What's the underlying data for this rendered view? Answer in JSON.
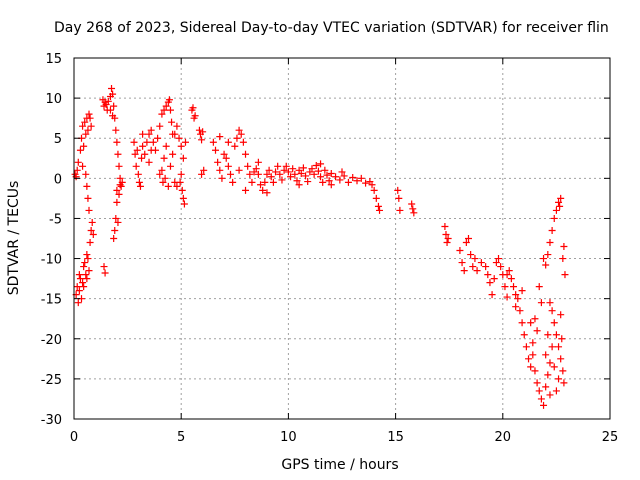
{
  "chart_data": {
    "type": "scatter",
    "title": "Day 268 of 2023, Sidereal Day-to-day VTEC variation (SDTVAR) for receiver flin",
    "xlabel": "GPS time / hours",
    "ylabel": "SDTVAR / TECUs",
    "xlim": [
      0,
      25
    ],
    "ylim": [
      -30,
      15
    ],
    "xticks": [
      0,
      5,
      10,
      15,
      20,
      25
    ],
    "yticks": [
      15,
      10,
      5,
      0,
      -5,
      -10,
      -15,
      -20,
      -25,
      -30
    ],
    "grid": true,
    "marker": "+",
    "color": "#ff0000",
    "series": [
      {
        "name": "SDTVAR",
        "points": [
          [
            0.05,
            0.5
          ],
          [
            0.1,
            0.2
          ],
          [
            0.15,
            1.0
          ],
          [
            0.2,
            -15.5
          ],
          [
            0.25,
            -14.0
          ],
          [
            0.3,
            -12.5
          ],
          [
            0.35,
            -15.0
          ],
          [
            0.4,
            -13.0
          ],
          [
            0.45,
            -11.0
          ],
          [
            0.5,
            -10.5
          ],
          [
            0.55,
            -12.0
          ],
          [
            0.6,
            -9.5
          ],
          [
            0.65,
            -10.0
          ],
          [
            0.7,
            -11.5
          ],
          [
            0.75,
            -8.0
          ],
          [
            0.8,
            -6.5
          ],
          [
            0.85,
            -5.5
          ],
          [
            0.9,
            -7.0
          ],
          [
            0.2,
            2.0
          ],
          [
            0.3,
            3.5
          ],
          [
            0.35,
            5.0
          ],
          [
            0.4,
            6.5
          ],
          [
            0.45,
            4.0
          ],
          [
            0.5,
            7.0
          ],
          [
            0.55,
            5.5
          ],
          [
            0.6,
            7.5
          ],
          [
            0.65,
            6.0
          ],
          [
            0.7,
            8.0
          ],
          [
            0.75,
            7.5
          ],
          [
            0.8,
            6.5
          ],
          [
            0.55,
            0.5
          ],
          [
            0.6,
            -1.0
          ],
          [
            0.65,
            -2.5
          ],
          [
            0.7,
            -4.0
          ],
          [
            0.15,
            -13.5
          ],
          [
            0.25,
            -12.0
          ],
          [
            0.1,
            -14.5
          ],
          [
            0.45,
            -13.5
          ],
          [
            0.6,
            -12.5
          ],
          [
            0.4,
            1.5
          ],
          [
            1.35,
            9.8
          ],
          [
            1.4,
            9.0
          ],
          [
            1.45,
            9.5
          ],
          [
            1.5,
            9.2
          ],
          [
            1.55,
            8.5
          ],
          [
            1.6,
            9.6
          ],
          [
            1.7,
            10.2
          ],
          [
            1.75,
            11.2
          ],
          [
            1.8,
            10.5
          ],
          [
            1.85,
            9.0
          ],
          [
            1.9,
            7.5
          ],
          [
            1.95,
            6.0
          ],
          [
            2.0,
            4.5
          ],
          [
            2.05,
            3.0
          ],
          [
            2.1,
            1.5
          ],
          [
            2.15,
            0.0
          ],
          [
            2.2,
            -1.0
          ],
          [
            2.25,
            -0.5
          ],
          [
            2.0,
            -3.0
          ],
          [
            1.95,
            -5.0
          ],
          [
            1.9,
            -6.5
          ],
          [
            1.85,
            -7.5
          ],
          [
            2.05,
            -5.5
          ],
          [
            2.1,
            -2.0
          ],
          [
            1.4,
            -11.0
          ],
          [
            1.45,
            -11.8
          ],
          [
            1.8,
            7.8
          ],
          [
            2.0,
            -1.5
          ],
          [
            2.15,
            -0.8
          ],
          [
            1.7,
            8.5
          ],
          [
            2.8,
            4.5
          ],
          [
            2.85,
            3.0
          ],
          [
            2.9,
            1.5
          ],
          [
            2.95,
            3.5
          ],
          [
            3.0,
            0.5
          ],
          [
            3.05,
            -0.5
          ],
          [
            3.1,
            -1.0
          ],
          [
            3.15,
            2.5
          ],
          [
            3.2,
            4.0
          ],
          [
            3.3,
            3.0
          ],
          [
            3.4,
            4.5
          ],
          [
            3.5,
            5.5
          ],
          [
            3.6,
            6.0
          ],
          [
            3.7,
            4.5
          ],
          [
            3.8,
            3.5
          ],
          [
            3.9,
            5.0
          ],
          [
            4.0,
            6.5
          ],
          [
            4.1,
            8.0
          ],
          [
            4.2,
            8.5
          ],
          [
            4.3,
            9.0
          ],
          [
            4.4,
            9.5
          ],
          [
            4.45,
            9.8
          ],
          [
            4.5,
            8.5
          ],
          [
            4.55,
            7.0
          ],
          [
            4.6,
            5.5
          ],
          [
            4.3,
            4.0
          ],
          [
            4.2,
            2.5
          ],
          [
            4.1,
            1.0
          ],
          [
            4.0,
            0.5
          ],
          [
            4.15,
            -0.5
          ],
          [
            4.25,
            0.0
          ],
          [
            4.4,
            -1.0
          ],
          [
            4.5,
            1.5
          ],
          [
            4.6,
            3.0
          ],
          [
            4.7,
            5.5
          ],
          [
            4.8,
            6.5
          ],
          [
            4.9,
            5.0
          ],
          [
            5.0,
            4.0
          ],
          [
            5.1,
            2.5
          ],
          [
            5.0,
            0.5
          ],
          [
            4.95,
            -0.5
          ],
          [
            5.05,
            -1.5
          ],
          [
            5.1,
            -2.5
          ],
          [
            5.15,
            -3.2
          ],
          [
            4.8,
            -1.0
          ],
          [
            4.7,
            -0.5
          ],
          [
            3.5,
            2.0
          ],
          [
            3.6,
            3.5
          ],
          [
            3.2,
            5.5
          ],
          [
            5.2,
            4.5
          ],
          [
            5.5,
            8.5
          ],
          [
            5.55,
            8.8
          ],
          [
            5.6,
            7.5
          ],
          [
            5.65,
            7.8
          ],
          [
            5.85,
            6.0
          ],
          [
            5.9,
            5.5
          ],
          [
            5.95,
            4.8
          ],
          [
            6.0,
            5.8
          ],
          [
            6.05,
            1.0
          ],
          [
            5.95,
            0.5
          ],
          [
            6.5,
            4.5
          ],
          [
            6.6,
            3.5
          ],
          [
            6.7,
            2.0
          ],
          [
            6.8,
            1.0
          ],
          [
            6.9,
            0.0
          ],
          [
            7.0,
            3.0
          ],
          [
            7.1,
            2.5
          ],
          [
            7.2,
            1.5
          ],
          [
            7.3,
            0.5
          ],
          [
            7.4,
            -0.5
          ],
          [
            7.5,
            4.0
          ],
          [
            7.6,
            5.0
          ],
          [
            7.7,
            6.0
          ],
          [
            7.8,
            5.5
          ],
          [
            7.9,
            4.5
          ],
          [
            8.0,
            3.0
          ],
          [
            8.1,
            1.5
          ],
          [
            8.2,
            0.5
          ],
          [
            8.3,
            -0.5
          ],
          [
            8.4,
            0.8
          ],
          [
            8.5,
            1.2
          ],
          [
            8.6,
            0.5
          ],
          [
            8.7,
            -0.8
          ],
          [
            8.8,
            -1.5
          ],
          [
            8.9,
            -0.5
          ],
          [
            9.0,
            0.5
          ],
          [
            9.1,
            1.0
          ],
          [
            9.2,
            0.2
          ],
          [
            9.3,
            -0.5
          ],
          [
            9.4,
            0.8
          ],
          [
            9.5,
            1.5
          ],
          [
            9.6,
            0.5
          ],
          [
            9.7,
            -0.2
          ],
          [
            9.8,
            1.0
          ],
          [
            9.9,
            1.5
          ],
          [
            10.0,
            0.8
          ],
          [
            10.1,
            0.2
          ],
          [
            10.2,
            1.2
          ],
          [
            10.3,
            0.5
          ],
          [
            10.4,
            -0.3
          ],
          [
            10.5,
            1.0
          ],
          [
            10.6,
            0.6
          ],
          [
            10.7,
            1.3
          ],
          [
            10.8,
            0.3
          ],
          [
            10.9,
            -0.4
          ],
          [
            11.0,
            0.8
          ],
          [
            11.1,
            1.2
          ],
          [
            11.2,
            0.5
          ],
          [
            11.3,
            1.6
          ],
          [
            11.4,
            0.9
          ],
          [
            11.5,
            0.2
          ],
          [
            11.6,
            -0.5
          ],
          [
            11.7,
            1.0
          ],
          [
            11.8,
            0.4
          ],
          [
            11.9,
            -0.3
          ],
          [
            12.0,
            0.6
          ],
          [
            12.2,
            0.2
          ],
          [
            12.4,
            -0.2
          ],
          [
            12.6,
            0.3
          ],
          [
            12.8,
            -0.5
          ],
          [
            13.0,
            0.1
          ],
          [
            13.2,
            -0.3
          ],
          [
            13.4,
            0.0
          ],
          [
            13.6,
            -0.6
          ],
          [
            13.8,
            -0.4
          ],
          [
            14.0,
            -1.5
          ],
          [
            14.1,
            -2.5
          ],
          [
            14.2,
            -3.5
          ],
          [
            14.25,
            -4.0
          ],
          [
            13.9,
            -0.8
          ],
          [
            7.7,
            1.0
          ],
          [
            8.0,
            -1.5
          ],
          [
            9.0,
            -1.8
          ],
          [
            10.5,
            -0.8
          ],
          [
            11.5,
            1.8
          ],
          [
            12.0,
            -0.8
          ],
          [
            12.5,
            0.8
          ],
          [
            7.2,
            4.5
          ],
          [
            6.8,
            5.2
          ],
          [
            8.6,
            2.0
          ],
          [
            15.1,
            -1.5
          ],
          [
            15.15,
            -2.5
          ],
          [
            15.2,
            -4.0
          ],
          [
            15.75,
            -3.2
          ],
          [
            15.8,
            -3.8
          ],
          [
            15.85,
            -4.3
          ],
          [
            17.3,
            -6.0
          ],
          [
            17.35,
            -7.0
          ],
          [
            17.4,
            -8.0
          ],
          [
            17.45,
            -7.5
          ],
          [
            18.0,
            -9.0
          ],
          [
            18.1,
            -10.5
          ],
          [
            18.2,
            -11.5
          ],
          [
            18.3,
            -8.0
          ],
          [
            18.4,
            -7.5
          ],
          [
            18.5,
            -9.5
          ],
          [
            18.6,
            -11.0
          ],
          [
            18.7,
            -10.0
          ],
          [
            18.8,
            -11.5
          ],
          [
            19.0,
            -10.5
          ],
          [
            19.2,
            -11.0
          ],
          [
            19.4,
            -13.0
          ],
          [
            19.5,
            -14.5
          ],
          [
            19.6,
            -12.5
          ],
          [
            19.7,
            -10.5
          ],
          [
            19.8,
            -10.0
          ],
          [
            19.9,
            -11.0
          ],
          [
            20.0,
            -12.0
          ],
          [
            20.1,
            -13.5
          ],
          [
            20.2,
            -12.0
          ],
          [
            20.3,
            -11.5
          ],
          [
            20.4,
            -12.5
          ],
          [
            20.5,
            -13.5
          ],
          [
            20.6,
            -14.5
          ],
          [
            20.7,
            -15.0
          ],
          [
            20.8,
            -16.5
          ],
          [
            20.9,
            -18.0
          ],
          [
            21.0,
            -19.5
          ],
          [
            21.1,
            -21.0
          ],
          [
            21.2,
            -22.5
          ],
          [
            21.3,
            -23.5
          ],
          [
            21.4,
            -22.0
          ],
          [
            21.5,
            -24.0
          ],
          [
            21.6,
            -25.5
          ],
          [
            21.7,
            -26.5
          ],
          [
            21.8,
            -27.5
          ],
          [
            21.9,
            -28.3
          ],
          [
            22.0,
            -26.0
          ],
          [
            22.1,
            -24.5
          ],
          [
            22.2,
            -23.0
          ],
          [
            21.5,
            -17.5
          ],
          [
            21.6,
            -19.0
          ],
          [
            21.4,
            -20.5
          ],
          [
            21.3,
            -18.0
          ],
          [
            21.7,
            -13.5
          ],
          [
            21.8,
            -15.5
          ],
          [
            20.6,
            -16.0
          ],
          [
            20.9,
            -14.0
          ],
          [
            20.2,
            -14.8
          ],
          [
            19.3,
            -12.0
          ],
          [
            21.9,
            -10.0
          ],
          [
            22.0,
            -10.8
          ],
          [
            22.1,
            -9.5
          ],
          [
            22.2,
            -8.0
          ],
          [
            22.3,
            -6.5
          ],
          [
            22.4,
            -5.0
          ],
          [
            22.5,
            -4.0
          ],
          [
            22.6,
            -3.0
          ],
          [
            22.7,
            -2.5
          ],
          [
            22.65,
            -3.5
          ],
          [
            22.2,
            -15.5
          ],
          [
            22.3,
            -16.5
          ],
          [
            22.4,
            -18.0
          ],
          [
            22.5,
            -19.5
          ],
          [
            22.6,
            -21.0
          ],
          [
            22.7,
            -22.5
          ],
          [
            22.8,
            -24.0
          ],
          [
            22.85,
            -25.5
          ],
          [
            22.6,
            -25.0
          ],
          [
            22.5,
            -26.5
          ],
          [
            22.3,
            -21.0
          ],
          [
            22.1,
            -19.5
          ],
          [
            22.0,
            -22.0
          ],
          [
            22.75,
            -20.0
          ],
          [
            22.8,
            -10.0
          ],
          [
            22.85,
            -8.5
          ],
          [
            22.9,
            -12.0
          ],
          [
            22.7,
            -17.0
          ],
          [
            22.4,
            -23.5
          ],
          [
            22.2,
            -27.0
          ]
        ]
      }
    ]
  }
}
